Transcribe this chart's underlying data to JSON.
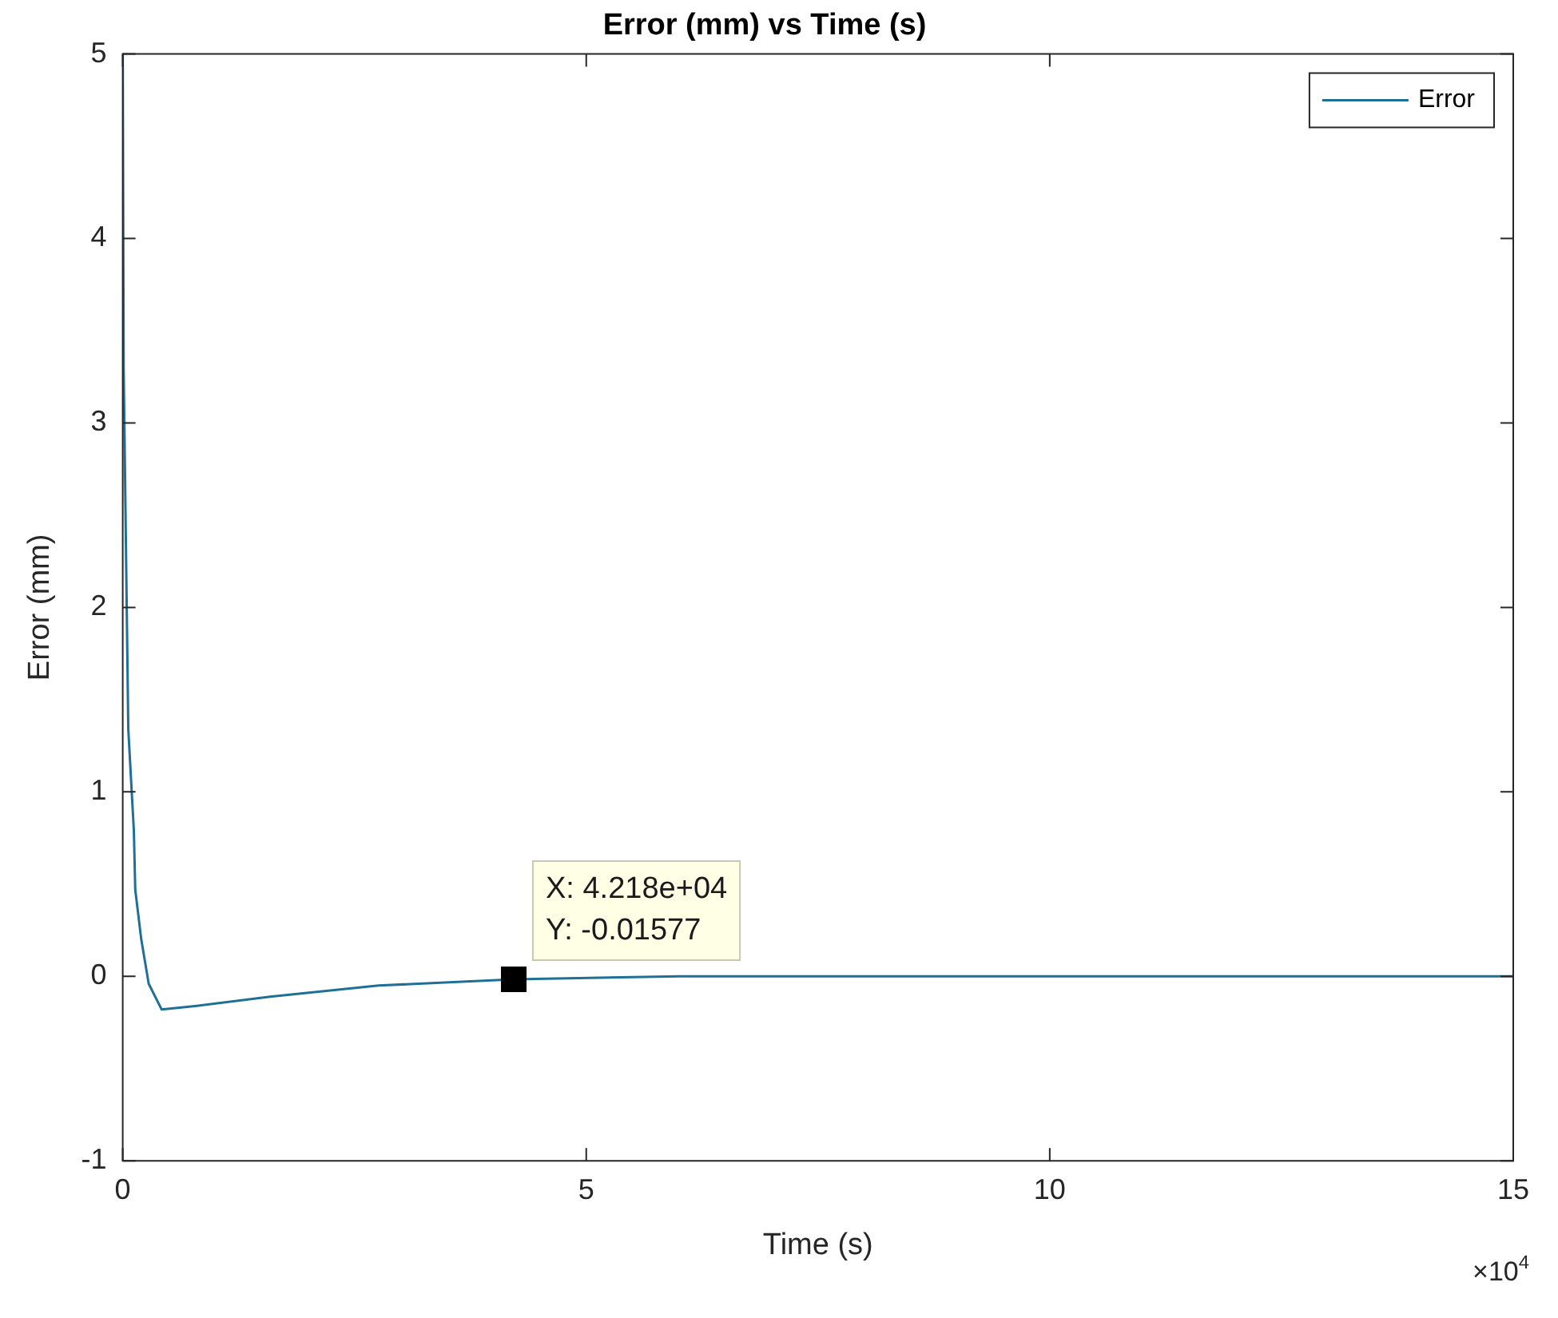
{
  "chart_data": {
    "type": "line",
    "title": "Error (mm) vs Time (s)",
    "xlabel": "Time (s)",
    "ylabel": "Error (mm)",
    "x": [
      0,
      0.01,
      0.06,
      0.12,
      0.135,
      0.2,
      0.28,
      0.42,
      0.8,
      1.59,
      2.76,
      4.218,
      6,
      15
    ],
    "series": [
      {
        "name": "Error",
        "color": "#1f7097",
        "values": [
          5,
          3.3,
          1.34,
          0.79,
          0.47,
          0.2,
          -0.04,
          -0.18,
          -0.16,
          -0.11,
          -0.05,
          -0.01577,
          0,
          0
        ]
      }
    ],
    "xlim": [
      0,
      15
    ],
    "xticks": [
      0,
      5,
      10,
      15
    ],
    "ylim": [
      -1,
      5
    ],
    "yticks": [
      -1,
      0,
      1,
      2,
      3,
      4,
      5
    ],
    "annotations": [
      {
        "text": "X: 4.218e+04\nY: -0.01577",
        "x": 4.218,
        "y": -0.01577
      },
      "×10$^{4}$"
    ],
    "grid": false,
    "legend": "top right",
    "marker": "none",
    "line_style": "solid"
  }
}
